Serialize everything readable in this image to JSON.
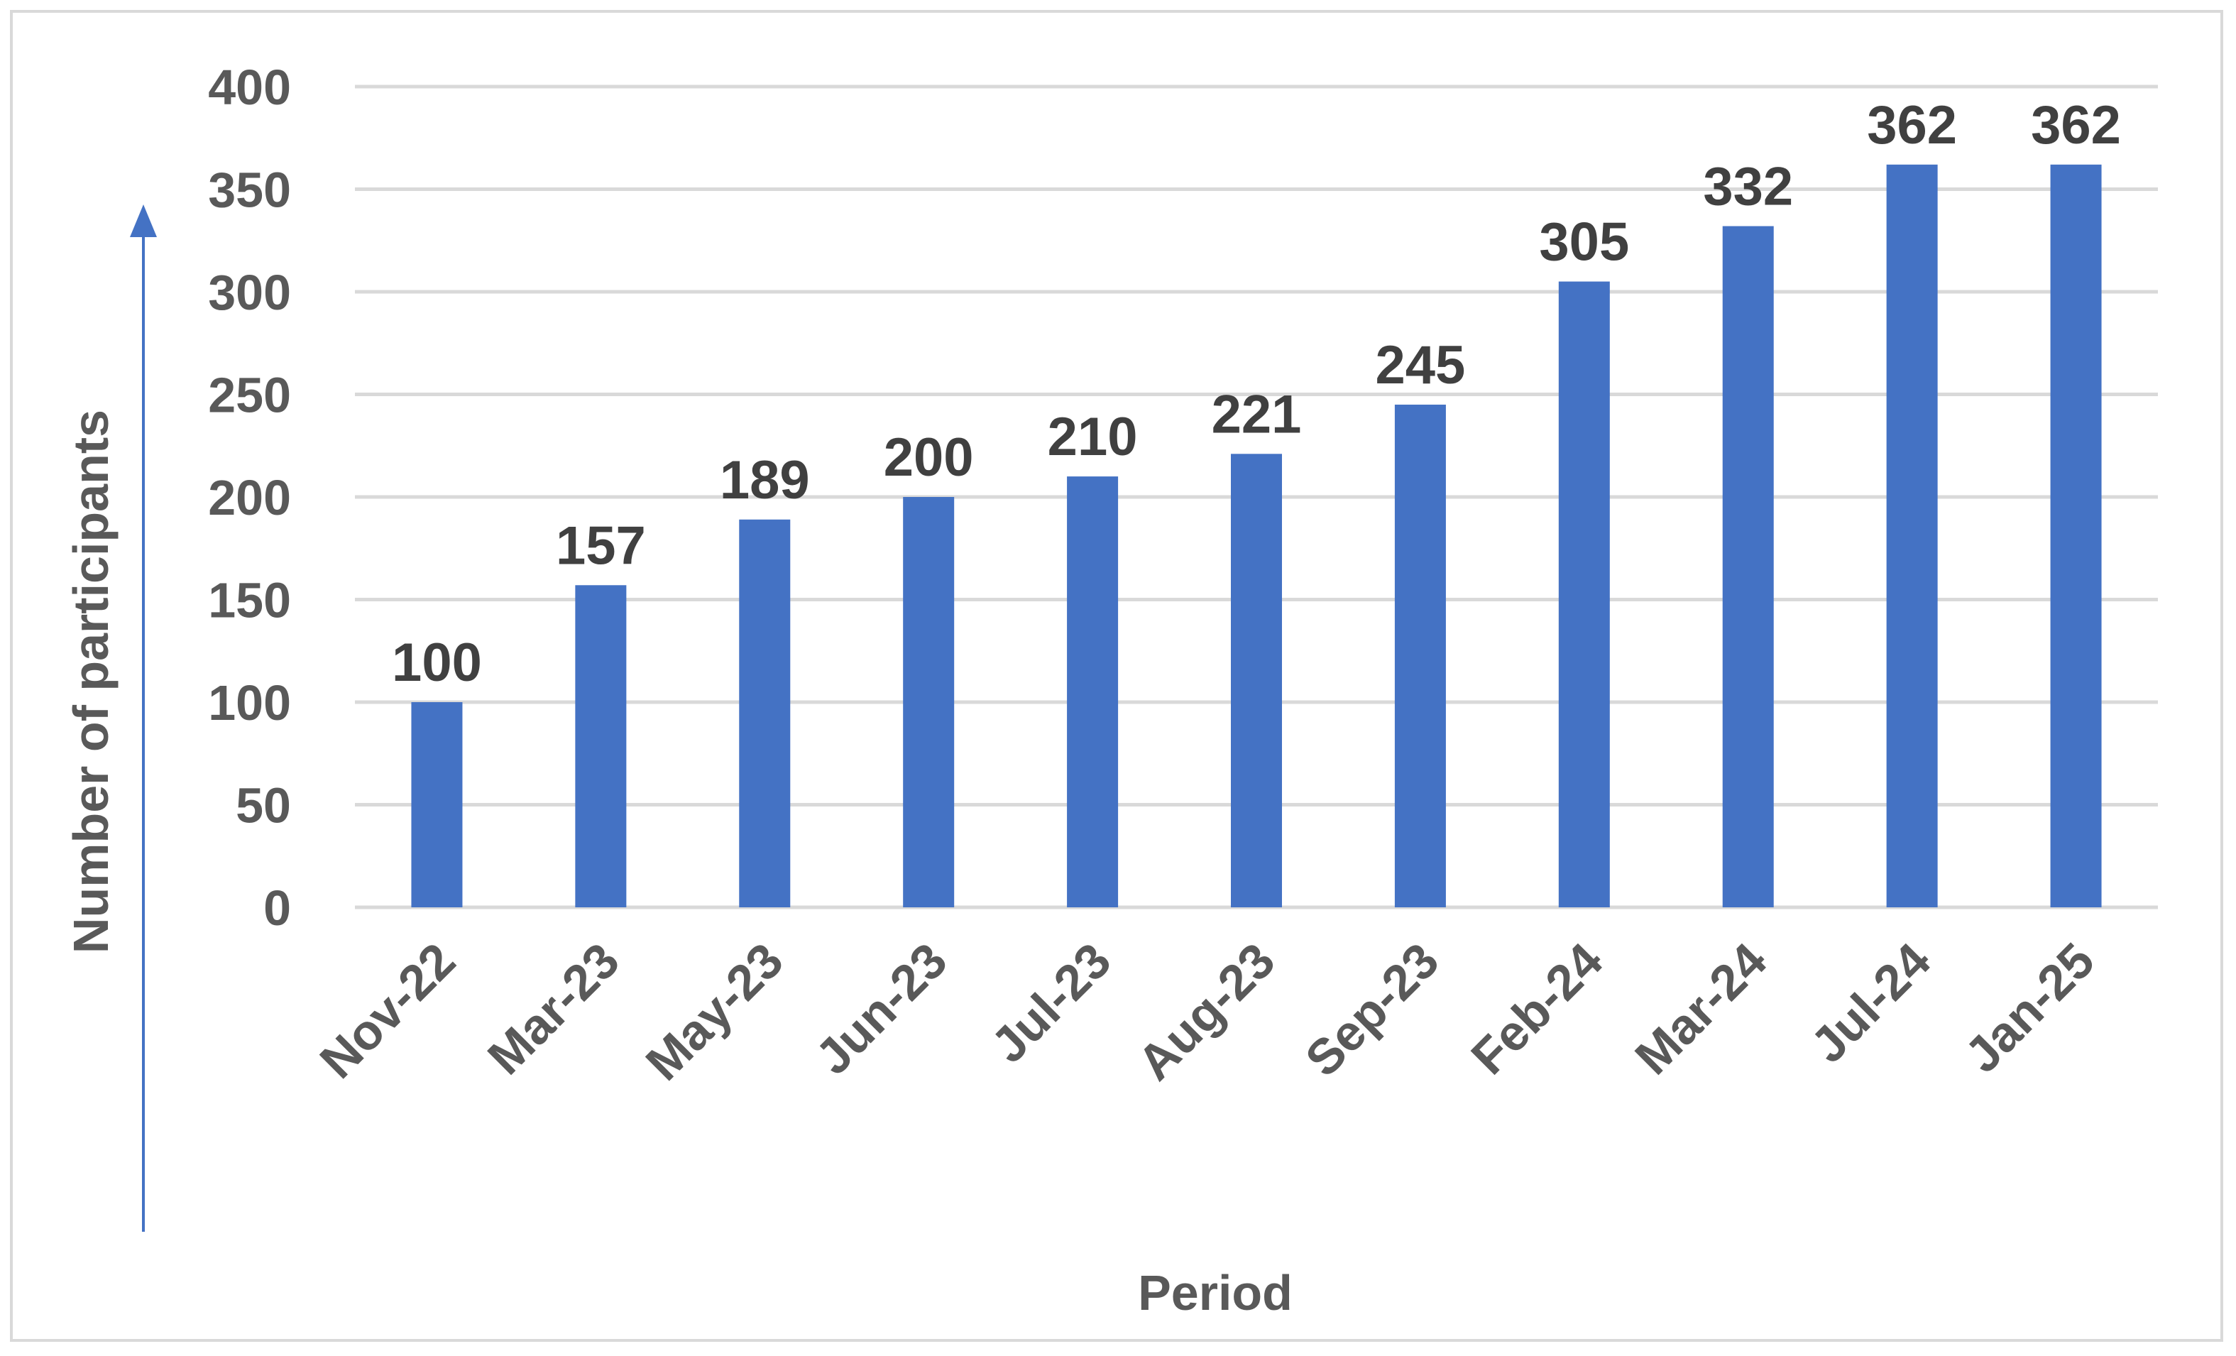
{
  "chart_data": {
    "type": "bar",
    "categories": [
      "Nov-22",
      "Mar-23",
      "May-23",
      "Jun-23",
      "Jul-23",
      "Aug-23",
      "Sep-23",
      "Feb-24",
      "Mar-24",
      "Jul-24",
      "Jan-25"
    ],
    "values": [
      100,
      157,
      189,
      200,
      210,
      221,
      245,
      305,
      332,
      362,
      362
    ],
    "title": "",
    "xlabel": "Period",
    "ylabel": "Number of participants",
    "ylim": [
      0,
      400
    ],
    "yticks": [
      "0",
      "50",
      "100",
      "150",
      "200",
      "250",
      "300",
      "350",
      "400"
    ],
    "data_labels": [
      "100",
      "157",
      "189",
      "200",
      "210",
      "221",
      "245",
      "305",
      "332",
      "362",
      "362"
    ],
    "grid": true,
    "legend": "none",
    "colors": {
      "bar": "#4472c4",
      "gridline": "#d9d9d9",
      "arrow": "#4472c4",
      "text": "#595959",
      "data_label": "#404040"
    }
  }
}
